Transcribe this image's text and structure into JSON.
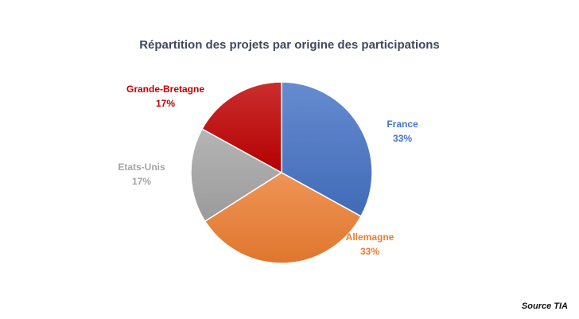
{
  "chart_data": {
    "type": "pie",
    "title": "Répartition des projets par origine des participations",
    "slices": [
      {
        "label": "France",
        "value": 33,
        "value_label": "33%",
        "color": "#4472c4"
      },
      {
        "label": "Allemagne",
        "value": 33,
        "value_label": "33%",
        "color": "#ed7d31"
      },
      {
        "label": "Etats-Unis",
        "value": 17,
        "value_label": "17%",
        "color": "#a5a5a5"
      },
      {
        "label": "Grande-Bretagne",
        "value": 17,
        "value_label": "17%",
        "color": "#c00000"
      }
    ],
    "legend": "none",
    "data_labels": "outside"
  },
  "source_text": "Source TIA"
}
